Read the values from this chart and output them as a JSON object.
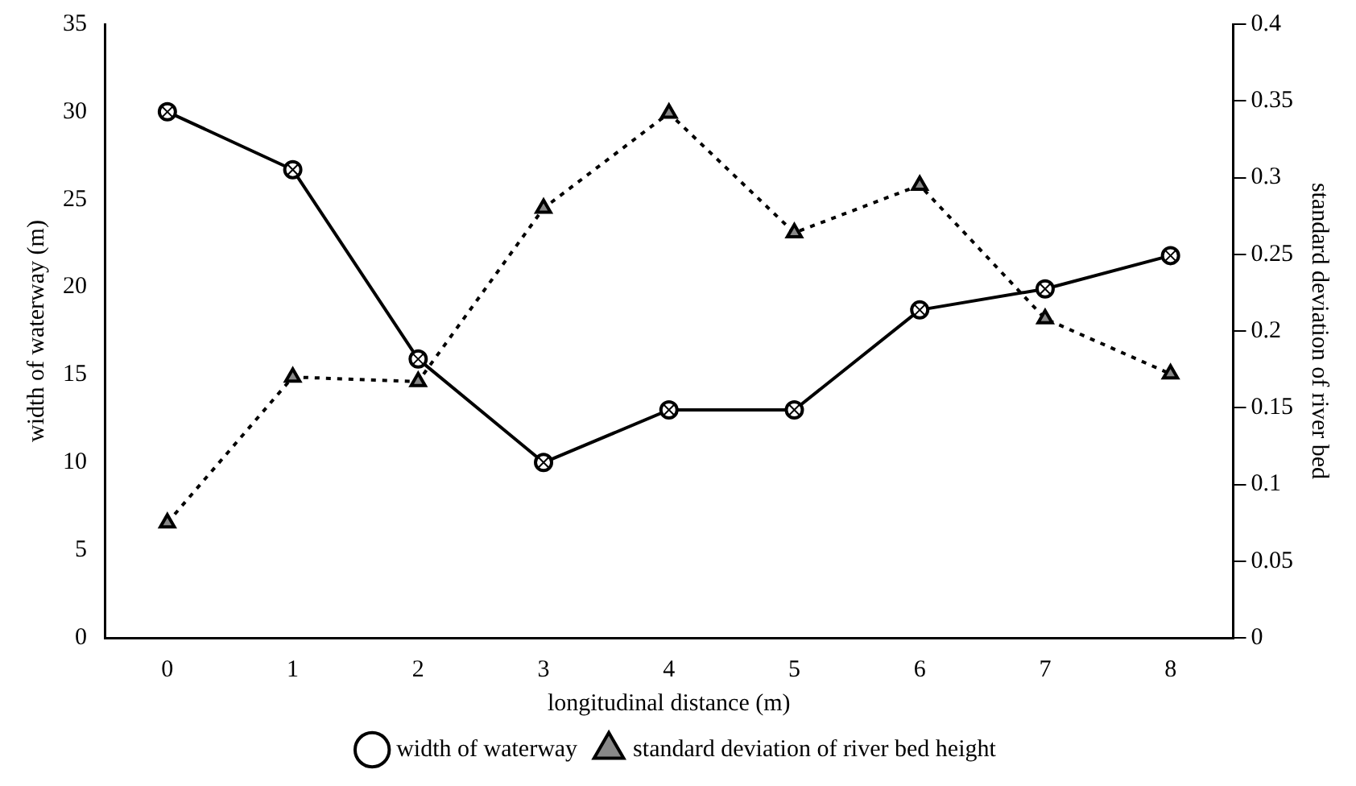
{
  "chart_data": {
    "type": "line",
    "xlabel": "longitudinal distance (m)",
    "ylabel": "width of waterway (m)",
    "y2label": "standard deviation of river bed",
    "categories": [
      "0",
      "1",
      "2",
      "3",
      "4",
      "5",
      "6",
      "7",
      "8"
    ],
    "series": [
      {
        "name": "width of waterway",
        "color": "#000000",
        "marker": "circle",
        "line_style": "solid",
        "values": [
          30,
          26.7,
          15.9,
          10,
          13,
          13,
          18.7,
          19.9,
          21.8
        ]
      },
      {
        "name": "standard deviation of river bed height",
        "color": "#000000",
        "marker": "triangle",
        "line_style": "dotted",
        "axis": "y2",
        "values": [
          0.075,
          0.17,
          0.167,
          0.28,
          0.342,
          0.264,
          0.295,
          0.208,
          0.172
        ]
      }
    ],
    "ylim": [
      0,
      35
    ],
    "yticks": [
      0,
      5,
      10,
      15,
      20,
      25,
      30,
      35
    ],
    "y2lim": [
      0,
      0.4
    ],
    "y2ticks": [
      0,
      0.05,
      0.1,
      0.15,
      0.2,
      0.25,
      0.3,
      0.35,
      0.4
    ],
    "grid": false,
    "legend": "bottom"
  }
}
